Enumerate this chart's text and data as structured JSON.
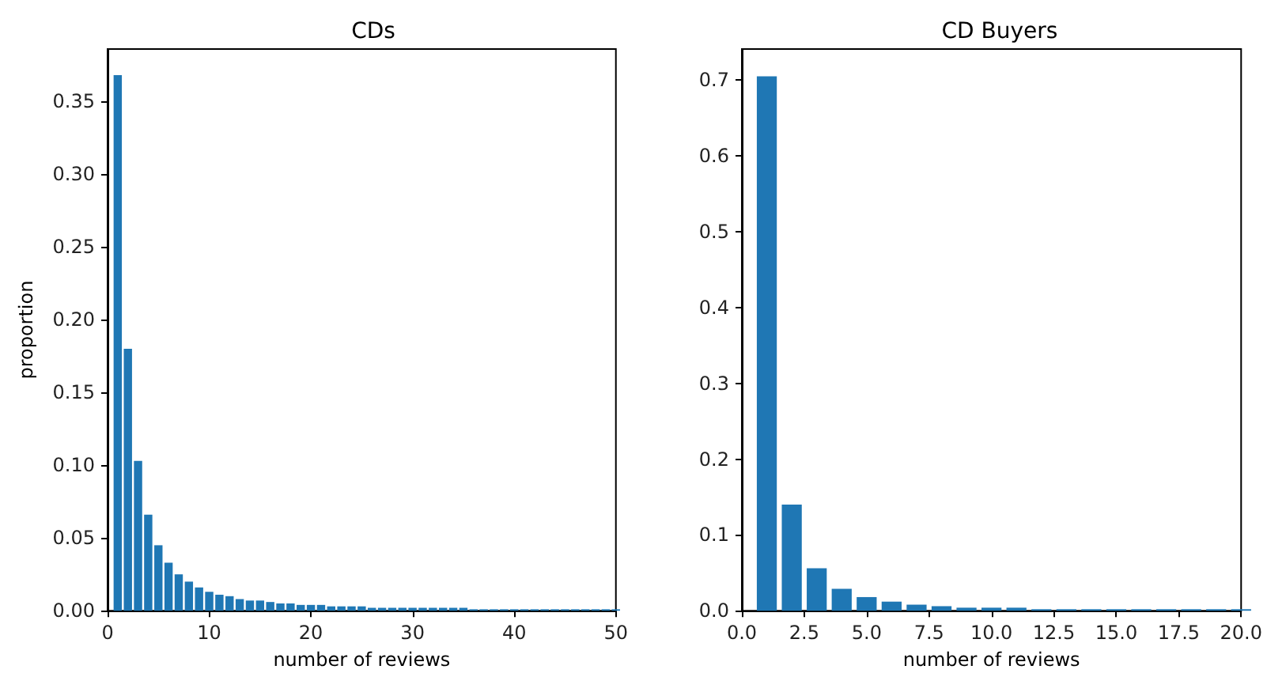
{
  "chart_data": [
    {
      "type": "bar",
      "title": "CDs",
      "xlabel": "number of reviews",
      "ylabel": "proportion",
      "color": "#1f77b4",
      "x": [
        1,
        2,
        3,
        4,
        5,
        6,
        7,
        8,
        9,
        10,
        11,
        12,
        13,
        14,
        15,
        16,
        17,
        18,
        19,
        20,
        21,
        22,
        23,
        24,
        25,
        26,
        27,
        28,
        29,
        30,
        31,
        32,
        33,
        34,
        35,
        36,
        37,
        38,
        39,
        40,
        41,
        42,
        43,
        44,
        45,
        46,
        47,
        48,
        49,
        50
      ],
      "values": [
        0.368,
        0.18,
        0.103,
        0.066,
        0.045,
        0.033,
        0.025,
        0.02,
        0.016,
        0.013,
        0.011,
        0.01,
        0.008,
        0.007,
        0.007,
        0.006,
        0.005,
        0.005,
        0.004,
        0.004,
        0.004,
        0.003,
        0.003,
        0.003,
        0.003,
        0.002,
        0.002,
        0.002,
        0.002,
        0.002,
        0.002,
        0.002,
        0.002,
        0.002,
        0.002,
        0.001,
        0.001,
        0.001,
        0.001,
        0.001,
        0.001,
        0.001,
        0.001,
        0.001,
        0.001,
        0.001,
        0.001,
        0.001,
        0.001,
        0.001
      ],
      "xlim": [
        0,
        50
      ],
      "xticks": [
        0,
        10,
        20,
        30,
        40,
        50
      ],
      "ylim": [
        0,
        0.386
      ],
      "yticks": [
        {
          "value": 0,
          "label": "0.00"
        },
        {
          "value": 0.05,
          "label": "0.05"
        },
        {
          "value": 0.1,
          "label": "0.10"
        },
        {
          "value": 0.15,
          "label": "0.15"
        },
        {
          "value": 0.2,
          "label": "0.20"
        },
        {
          "value": 0.25,
          "label": "0.25"
        },
        {
          "value": 0.3,
          "label": "0.30"
        },
        {
          "value": 0.35,
          "label": "0.35"
        }
      ]
    },
    {
      "type": "bar",
      "title": "CD Buyers",
      "xlabel": "number of reviews",
      "color": "#1f77b4",
      "x": [
        1,
        2,
        3,
        4,
        5,
        6,
        7,
        8,
        9,
        10,
        11,
        12,
        13,
        14,
        15,
        16,
        17,
        18,
        19,
        20
      ],
      "values": [
        0.705,
        0.14,
        0.056,
        0.029,
        0.018,
        0.012,
        0.008,
        0.006,
        0.004,
        0.004,
        0.004,
        0.002,
        0.002,
        0.002,
        0.002,
        0.002,
        0.002,
        0.002,
        0.002,
        0.002
      ],
      "xlim": [
        0,
        20
      ],
      "xticks": [
        {
          "value": 0,
          "label": "0.0"
        },
        {
          "value": 2.5,
          "label": "2.5"
        },
        {
          "value": 5,
          "label": "5.0"
        },
        {
          "value": 7.5,
          "label": "7.5"
        },
        {
          "value": 10,
          "label": "10.0"
        },
        {
          "value": 12.5,
          "label": "12.5"
        },
        {
          "value": 15,
          "label": "15.0"
        },
        {
          "value": 17.5,
          "label": "17.5"
        },
        {
          "value": 20,
          "label": "20.0"
        }
      ],
      "ylim": [
        0,
        0.741
      ],
      "yticks": [
        {
          "value": 0,
          "label": "0.0"
        },
        {
          "value": 0.1,
          "label": "0.1"
        },
        {
          "value": 0.2,
          "label": "0.2"
        },
        {
          "value": 0.3,
          "label": "0.3"
        },
        {
          "value": 0.4,
          "label": "0.4"
        },
        {
          "value": 0.5,
          "label": "0.5"
        },
        {
          "value": 0.6,
          "label": "0.6"
        },
        {
          "value": 0.7,
          "label": "0.7"
        }
      ]
    }
  ]
}
